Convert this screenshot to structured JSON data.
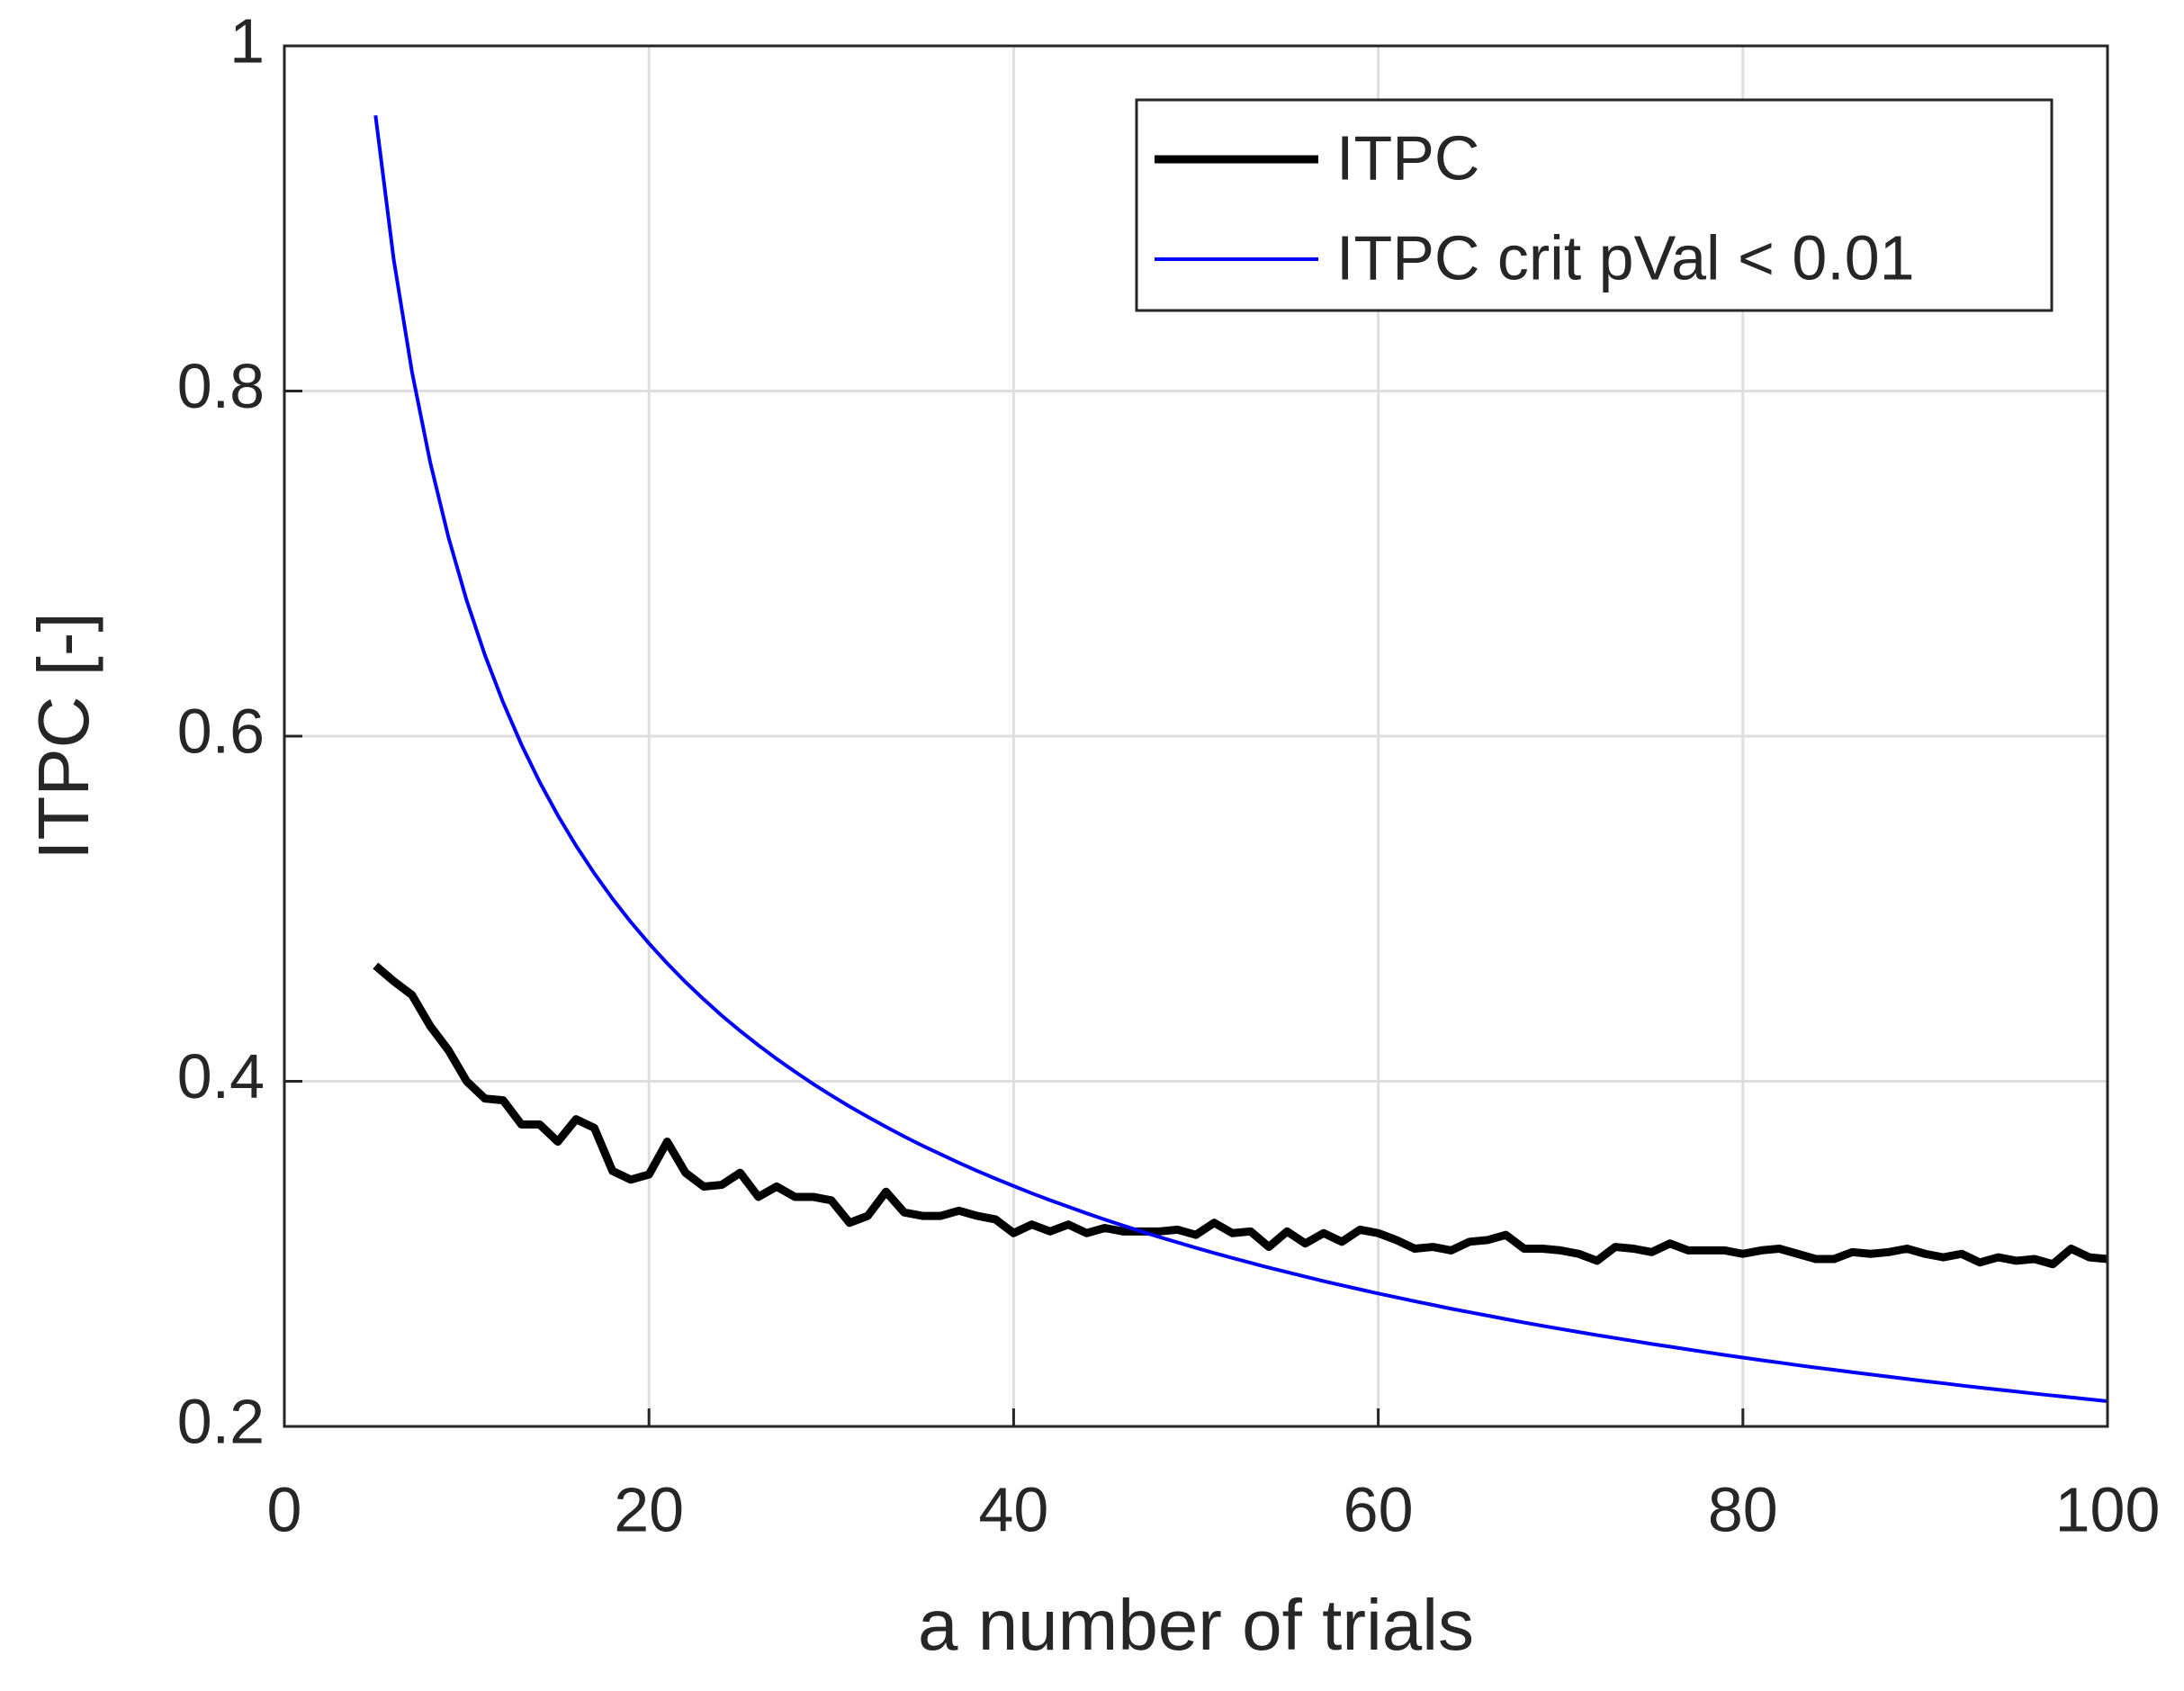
{
  "chart_data": {
    "type": "line",
    "xlabel": "a number of trials",
    "ylabel": "ITPC [-]",
    "xlim": [
      0,
      100
    ],
    "ylim": [
      0.2,
      1
    ],
    "xticks": [
      0,
      20,
      40,
      60,
      80,
      100
    ],
    "yticks": [
      0.2,
      0.4,
      0.6,
      0.8,
      1
    ],
    "grid": true,
    "legend": "upper right",
    "x": [
      5,
      6,
      7,
      8,
      9,
      10,
      11,
      12,
      13,
      14,
      15,
      16,
      17,
      18,
      19,
      20,
      21,
      22,
      23,
      24,
      25,
      26,
      27,
      28,
      29,
      30,
      31,
      32,
      33,
      34,
      35,
      36,
      37,
      38,
      39,
      40,
      41,
      42,
      43,
      44,
      45,
      46,
      47,
      48,
      49,
      50,
      51,
      52,
      53,
      54,
      55,
      56,
      57,
      58,
      59,
      60,
      61,
      62,
      63,
      64,
      65,
      66,
      67,
      68,
      69,
      70,
      71,
      72,
      73,
      74,
      75,
      76,
      77,
      78,
      79,
      80,
      81,
      82,
      83,
      84,
      85,
      86,
      87,
      88,
      89,
      90,
      91,
      92,
      93,
      94,
      95,
      96,
      97,
      98,
      99,
      100
    ],
    "series": [
      {
        "name": "ITPC",
        "color": "#000000",
        "width": 9,
        "values": [
          0.467,
          0.458,
          0.45,
          0.432,
          0.418,
          0.4,
          0.39,
          0.389,
          0.375,
          0.375,
          0.365,
          0.378,
          0.373,
          0.348,
          0.343,
          0.346,
          0.365,
          0.347,
          0.339,
          0.34,
          0.347,
          0.333,
          0.339,
          0.333,
          0.333,
          0.331,
          0.318,
          0.322,
          0.336,
          0.324,
          0.322,
          0.322,
          0.325,
          0.322,
          0.32,
          0.312,
          0.317,
          0.313,
          0.317,
          0.312,
          0.315,
          0.313,
          0.313,
          0.313,
          0.314,
          0.311,
          0.318,
          0.312,
          0.313,
          0.304,
          0.313,
          0.306,
          0.312,
          0.307,
          0.314,
          0.312,
          0.308,
          0.303,
          0.304,
          0.302,
          0.307,
          0.308,
          0.311,
          0.303,
          0.303,
          0.302,
          0.3,
          0.296,
          0.304,
          0.303,
          0.301,
          0.306,
          0.302,
          0.302,
          0.302,
          0.3,
          0.302,
          0.303,
          0.3,
          0.297,
          0.297,
          0.301,
          0.3,
          0.301,
          0.303,
          0.3,
          0.298,
          0.3,
          0.295,
          0.298,
          0.296,
          0.297,
          0.294,
          0.303,
          0.298,
          0.297
        ]
      },
      {
        "name": "ITPC crit pVal < 0.01",
        "color": "#0000ff",
        "width": 4,
        "values": [
          0.9597,
          0.8761,
          0.8111,
          0.7587,
          0.7153,
          0.6786,
          0.647,
          0.6195,
          0.5952,
          0.5735,
          0.5541,
          0.5365,
          0.5205,
          0.5058,
          0.4923,
          0.4799,
          0.4683,
          0.4575,
          0.4475,
          0.438,
          0.4292,
          0.4209,
          0.413,
          0.4056,
          0.3985,
          0.3918,
          0.3854,
          0.3794,
          0.3736,
          0.368,
          0.3627,
          0.3577,
          0.3528,
          0.3481,
          0.3436,
          0.3393,
          0.3351,
          0.3311,
          0.3273,
          0.3235,
          0.3199,
          0.3164,
          0.313,
          0.3097,
          0.3066,
          0.3035,
          0.3005,
          0.2976,
          0.2948,
          0.292,
          0.2894,
          0.2868,
          0.2842,
          0.2818,
          0.2794,
          0.277,
          0.2748,
          0.2725,
          0.2704,
          0.2682,
          0.2662,
          0.2642,
          0.2622,
          0.2602,
          0.2583,
          0.2565,
          0.2547,
          0.2529,
          0.2512,
          0.2495,
          0.2478,
          0.2462,
          0.2446,
          0.243,
          0.2414,
          0.2399,
          0.2384,
          0.237,
          0.2355,
          0.2341,
          0.2328,
          0.2314,
          0.2301,
          0.2288,
          0.2275,
          0.2262,
          0.225,
          0.2237,
          0.2225,
          0.2213,
          0.2202,
          0.219,
          0.2179,
          0.2168,
          0.2157,
          0.2146
        ]
      }
    ]
  }
}
